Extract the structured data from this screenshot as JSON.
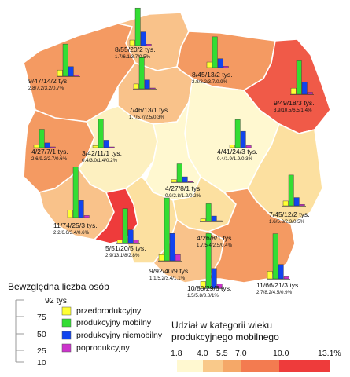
{
  "chart_data": {
    "type": "bar",
    "regions": [
      {
        "key": "pomorskie",
        "label": "8/55/20/2 tys.",
        "sub": "1.7/6.1/3.7/0.5%",
        "values": [
          8,
          55,
          20,
          2
        ],
        "share": 6.1
      },
      {
        "key": "zachodniopomorskie",
        "label": "9/47/14/2 tys.",
        "sub": "2.8/7.2/3.2/0.7%",
        "values": [
          9,
          47,
          14,
          2
        ],
        "share": 7.2
      },
      {
        "key": "warminsko-mazurskie",
        "label": "8/45/13/2 tys.",
        "sub": "2.8/8.2/3.7/0.9%",
        "values": [
          8,
          45,
          13,
          2
        ],
        "share": 8.2
      },
      {
        "key": "podlaskie",
        "label": "9/49/18/3 tys.",
        "sub": "3.9/10.5/6.5/1.4%",
        "values": [
          9,
          49,
          18,
          3
        ],
        "share": 10.5
      },
      {
        "key": "kujawsko-pomorskie",
        "label": "7/46/13/1 tys.",
        "sub": "1.7/5.7/2.5/0.3%",
        "values": [
          7,
          46,
          13,
          1
        ],
        "share": 5.7
      },
      {
        "key": "lubuskie",
        "label": "4/27/7/1 tys.",
        "sub": "2.6/9.2/2.7/0.6%",
        "values": [
          4,
          27,
          7,
          1
        ],
        "share": 9.2
      },
      {
        "key": "wielkopolskie",
        "label": "3/42/11/1 tys.",
        "sub": "0.4/3.0/1.4/0.2%",
        "values": [
          3,
          42,
          11,
          1
        ],
        "share": 3.0
      },
      {
        "key": "mazowieckie",
        "label": "4/41/24/3 tys.",
        "sub": "0.4/1.9/1.9/0.3%",
        "values": [
          4,
          41,
          24,
          3
        ],
        "share": 1.9
      },
      {
        "key": "lodzkie",
        "label": "4/27/8/1 tys.",
        "sub": "0.9/2.8/1.2/0.2%",
        "values": [
          4,
          27,
          8,
          1
        ],
        "share": 2.8
      },
      {
        "key": "lubelskie",
        "label": "7/45/12/2 tys.",
        "sub": "1.6/5.3/2.3/0.5%",
        "values": [
          7,
          45,
          12,
          2
        ],
        "share": 5.3
      },
      {
        "key": "dolnoslaskie",
        "label": "11/74/25/3 tys.",
        "sub": "2.2/6.6/3.4/0.6%",
        "values": [
          11,
          74,
          25,
          3
        ],
        "share": 6.6
      },
      {
        "key": "opolskie",
        "label": "5/51/20/5 tys.",
        "sub": "2.9/13.1/8/2.8%",
        "values": [
          5,
          51,
          20,
          5
        ],
        "share": 13.1
      },
      {
        "key": "swietokrzyskie",
        "label": "4/26/8/1 tys.",
        "sub": "1.7/5.4/2.5/0.4%",
        "values": [
          4,
          26,
          8,
          1
        ],
        "share": 5.4
      },
      {
        "key": "slaskie",
        "label": "9/92/40/9 tys.",
        "sub": "1.1/5.2/3.4/1.1%",
        "values": [
          9,
          92,
          40,
          9
        ],
        "share": 5.2
      },
      {
        "key": "malopolskie",
        "label": "10/80/29/6 tys.",
        "sub": "1.5/5.8/3.8/1%",
        "values": [
          10,
          80,
          29,
          6
        ],
        "share": 5.8
      },
      {
        "key": "podkarpackie",
        "label": "11/66/21/3 tys.",
        "sub": "2.7/8.2/4.5/0.9%",
        "values": [
          11,
          66,
          21,
          3
        ],
        "share": 8.2
      }
    ],
    "series": [
      {
        "name": "przedprodukcyjny",
        "color": "#ffff33"
      },
      {
        "name": "produkcyjny mobilny",
        "color": "#33dd33"
      },
      {
        "name": "produkcyjny niemobilny",
        "color": "#1144ee"
      },
      {
        "name": "poprodukcyjny",
        "color": "#cc33cc"
      }
    ],
    "size_legend": {
      "title": "Bewzględna liczba osób",
      "ticks": [
        "92 tys.",
        "75",
        "50",
        "25",
        "10"
      ],
      "tick_values": [
        92,
        75,
        50,
        25,
        10
      ]
    },
    "color_legend": {
      "title_line1": "Udział w kategorii wieku",
      "title_line2": "produkcyjnego mobilnego",
      "breaks": [
        "1.8",
        "4.0",
        "5.5",
        "7.0",
        "10.0",
        "13.1%"
      ],
      "colors": [
        "#fff8d0",
        "#fce7a8",
        "#f9c98a",
        "#f5a868",
        "#f37b50",
        "#ee3b3b"
      ]
    }
  }
}
